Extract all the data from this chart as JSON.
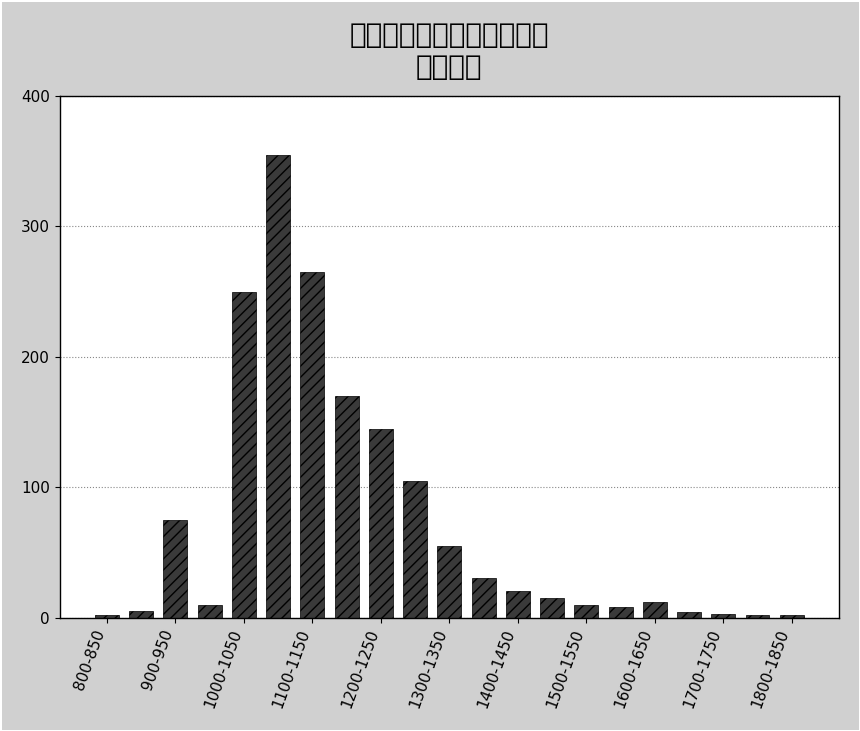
{
  "title_line1": "早高峰车公庄至公主坟旅行",
  "title_line2": "时间分布",
  "categories": [
    "800-850",
    "850-900",
    "900-950",
    "950-1000",
    "1000-1050",
    "1050-1100",
    "1100-1150",
    "1150-1200",
    "1200-1250",
    "1250-1300",
    "1300-1350",
    "1350-1400",
    "1400-1450",
    "1450-1500",
    "1500-1550",
    "1550-1600",
    "1600-1650",
    "1650-1700",
    "1700-1750",
    "1750-1800",
    "1800-1850"
  ],
  "values": [
    2,
    5,
    75,
    10,
    250,
    355,
    265,
    170,
    145,
    105,
    55,
    30,
    20,
    15,
    10,
    8,
    12,
    4,
    3,
    2,
    2
  ],
  "xlabels": [
    "800-850",
    "900-950",
    "1000-1050",
    "1100-1150",
    "1200-1250",
    "1300-1350",
    "1400-1450",
    "1500-1550",
    "1600-1650",
    "1700-1750",
    "1800-1850"
  ],
  "bar_color": "#3a3a3a",
  "background_color": "#ffffff",
  "plot_bg": "#f0f0f0",
  "ylim": [
    0,
    400
  ],
  "yticks": [
    0,
    100,
    200,
    300,
    400
  ],
  "title_fontsize": 20,
  "tick_fontsize": 11,
  "grid_color": "#888888",
  "bar_width": 0.7,
  "border_color": "#000000"
}
